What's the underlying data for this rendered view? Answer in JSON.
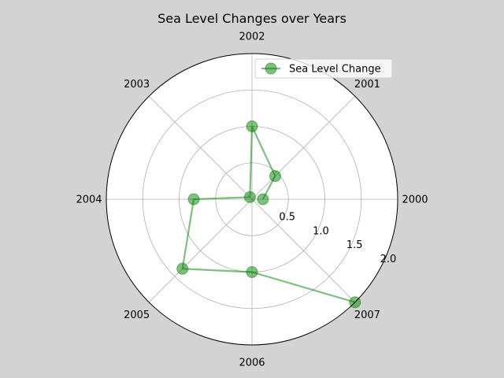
{
  "chart_data": {
    "type": "line",
    "subtype": "polar",
    "title": "Sea Level Changes over Years",
    "theta_labels": [
      "2000",
      "2001",
      "2002",
      "2003",
      "2004",
      "2005",
      "2006",
      "2007"
    ],
    "r_ticks": [
      0.5,
      1.0,
      1.5,
      2.0
    ],
    "r_tick_labels": [
      "0.5",
      "1.0",
      "1.5",
      "2.0"
    ],
    "rlim": [
      0,
      2.0
    ],
    "grid": true,
    "legend_position": "top-right",
    "series": [
      {
        "name": "Sea Level Change",
        "color": "#008000",
        "marker": "circle",
        "points": [
          {
            "label": "2000",
            "value": 0.15
          },
          {
            "label": "2001",
            "value": 0.45
          },
          {
            "label": "2002",
            "value": 1.0
          },
          {
            "label": "2003",
            "value": 0.04
          },
          {
            "label": "2004",
            "value": 0.8
          },
          {
            "label": "2005",
            "value": 1.35
          },
          {
            "label": "2006",
            "value": 1.0
          },
          {
            "label": "2007",
            "value": 2.0
          }
        ]
      }
    ]
  }
}
